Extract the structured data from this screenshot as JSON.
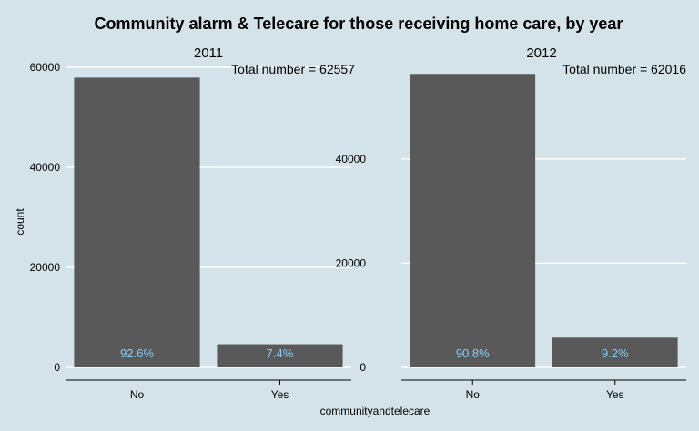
{
  "chart_data": {
    "type": "bar",
    "title": "Community alarm & Telecare for those receiving home care, by year",
    "xlabel": "communityandtelecare",
    "ylabel": "count",
    "categories": [
      "No",
      "Yes"
    ],
    "grid": true,
    "panels": [
      {
        "name": "2011",
        "total_label": "Total number = 62557",
        "values": [
          57928,
          4629
        ],
        "labels": [
          "92.6%",
          "7.4%"
        ],
        "ylim": [
          0,
          60000
        ],
        "yticks": [
          0,
          20000,
          40000,
          60000
        ],
        "ytick_labels": [
          "0",
          "20000",
          "40000",
          "60000"
        ]
      },
      {
        "name": "2012",
        "total_label": "Total number = 62016",
        "values": [
          56311,
          5705
        ],
        "labels": [
          "90.8%",
          "9.2%"
        ],
        "ylim": [
          0,
          60000
        ],
        "yticks": [
          0,
          20000,
          40000
        ],
        "ytick_labels": [
          "0",
          "20000",
          "40000"
        ]
      }
    ]
  }
}
